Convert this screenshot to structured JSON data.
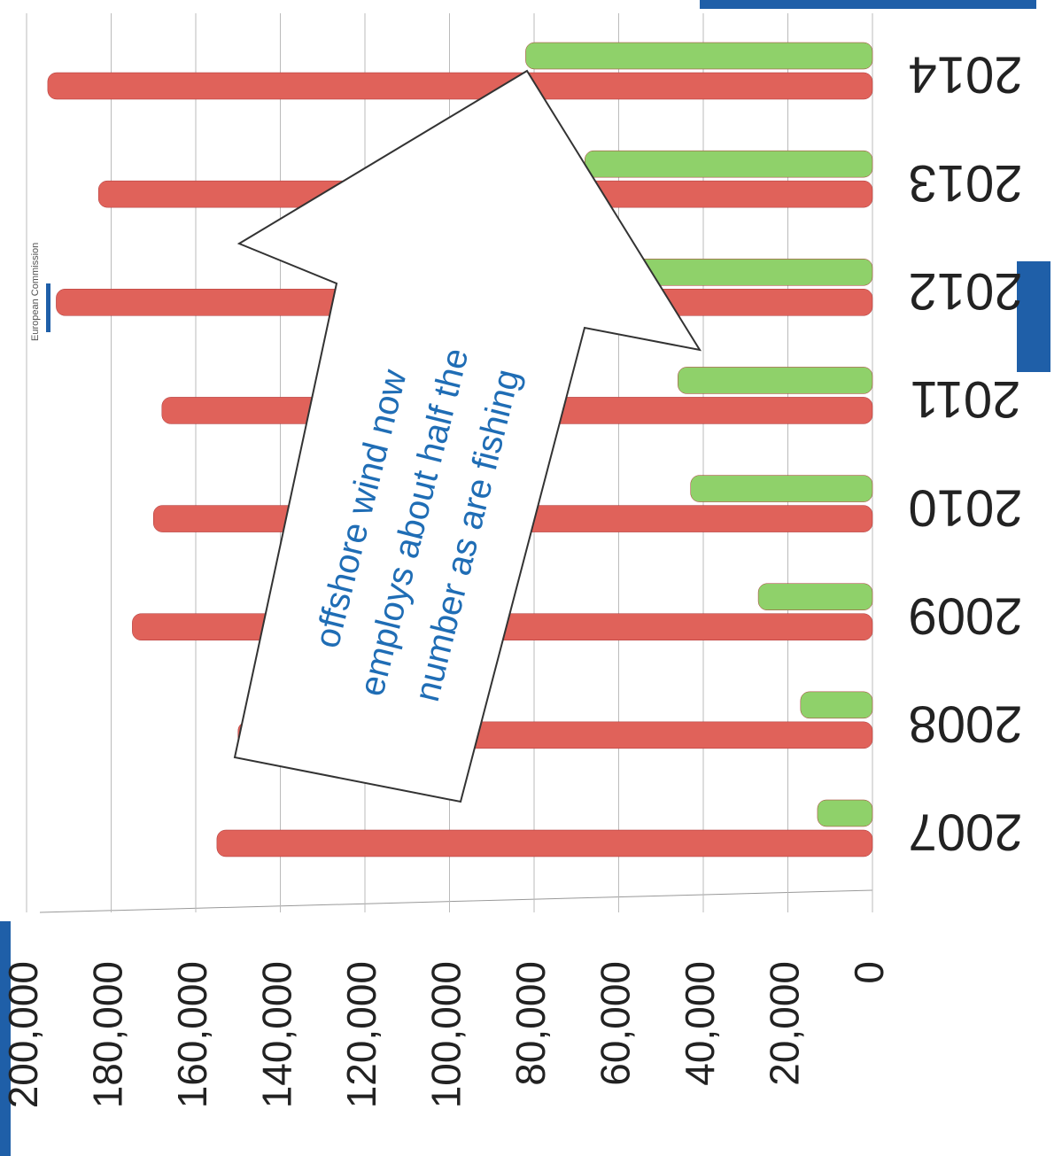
{
  "chart_data": {
    "type": "bar",
    "logo": "European Commission",
    "annotation": [
      "offshore wind now",
      "employs about half the",
      "number as are fishing"
    ],
    "categories": [
      "2007",
      "2008",
      "2009",
      "2010",
      "2011",
      "2012",
      "2013",
      "2014"
    ],
    "series": [
      {
        "color": "#e0625a",
        "values": [
          155000,
          150000,
          175000,
          170000,
          168000,
          193000,
          183000,
          195000
        ]
      },
      {
        "color": "#8fd16a",
        "values": [
          13000,
          17000,
          27000,
          43000,
          46000,
          60000,
          68000,
          82000
        ]
      }
    ],
    "ylim": [
      0,
      200000
    ],
    "yticks": [
      0,
      {
        "value": 20000,
        "label": "20,000"
      },
      {
        "value": 40000,
        "label": "40,000"
      },
      {
        "value": 60000,
        "label": "60,000"
      },
      {
        "value": 80000,
        "label": "80,000"
      },
      {
        "value": 100000,
        "label": "100,000"
      },
      {
        "value": 120000,
        "label": "120,000"
      },
      {
        "value": 140000,
        "label": "140,000"
      },
      {
        "value": 160000,
        "label": "160,000"
      },
      {
        "value": 180000,
        "label": "180,000"
      },
      {
        "value": 200000,
        "label": "200,000"
      }
    ],
    "grid": true
  }
}
